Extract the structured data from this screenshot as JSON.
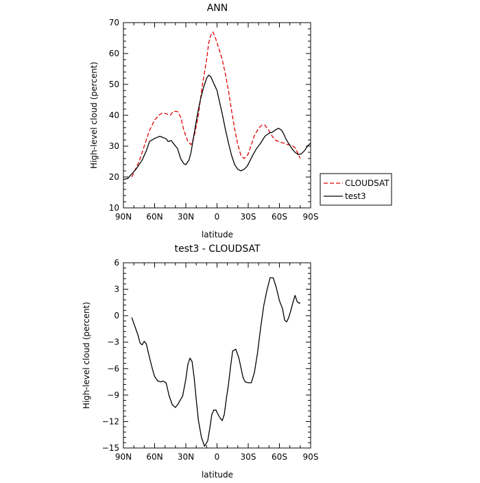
{
  "chart_data": [
    {
      "type": "line",
      "title": "ANN",
      "xlabel": "latitude",
      "ylabel": "High-level cloud (percent)",
      "xlim": [
        90,
        -90
      ],
      "ylim": [
        10,
        70
      ],
      "x_ticks": [
        90,
        60,
        30,
        0,
        -30,
        -60,
        -90
      ],
      "x_tick_labels": [
        "90N",
        "60N",
        "30N",
        "0",
        "30S",
        "60S",
        "90S"
      ],
      "y_ticks": [
        10,
        20,
        30,
        40,
        50,
        60,
        70
      ],
      "y_tick_labels": [
        "10",
        "20",
        "30",
        "40",
        "50",
        "60",
        "70"
      ],
      "legend_position": "right",
      "series": [
        {
          "name": "CLOUDSAT",
          "color": "#e00000",
          "dash": "dashed",
          "x": [
            82,
            75,
            70,
            65,
            60,
            55,
            52,
            49,
            45,
            42,
            38,
            35,
            32,
            28,
            25,
            22,
            18,
            14,
            10,
            8,
            6,
            4,
            2,
            0,
            -2,
            -5,
            -8,
            -11,
            -14,
            -17,
            -20,
            -23,
            -26,
            -28,
            -30,
            -33,
            -36,
            -40,
            -43,
            -46,
            -50,
            -53,
            -56,
            -60,
            -64,
            -68,
            -72,
            -75,
            -78,
            -80
          ],
          "y": [
            20,
            25,
            30,
            35,
            38.5,
            40.3,
            40.8,
            40.5,
            40,
            41.3,
            41.2,
            39.5,
            35.2,
            31.5,
            30.5,
            33,
            40,
            50,
            58,
            63.5,
            66,
            67,
            65.5,
            63.5,
            61.5,
            58,
            53.5,
            48,
            41.5,
            35.5,
            30.5,
            27,
            26,
            26.5,
            27.5,
            30.5,
            33.5,
            35.8,
            36.8,
            36.8,
            35,
            33.2,
            32,
            31.3,
            31,
            30.5,
            30.2,
            29.5,
            27.5,
            26
          ]
        },
        {
          "name": "test3",
          "color": "#000000",
          "dash": "solid",
          "x": [
            90,
            86,
            82,
            78,
            75,
            72,
            68,
            65,
            60,
            55,
            52,
            49,
            47,
            44,
            41,
            38,
            35,
            32,
            30,
            27,
            25,
            22,
            19,
            16,
            13,
            10,
            8,
            6,
            4,
            2,
            0,
            -2,
            -5,
            -8,
            -11,
            -14,
            -17,
            -20,
            -23,
            -26,
            -29,
            -32,
            -35,
            -38,
            -42,
            -46,
            -50,
            -53,
            -56,
            -59,
            -62,
            -64,
            -66,
            -69,
            -72,
            -75,
            -78,
            -81,
            -84,
            -87,
            -90
          ],
          "y": [
            19.2,
            19.5,
            21,
            22.5,
            24,
            25.5,
            28.5,
            31.5,
            32.5,
            33.2,
            32.8,
            32.4,
            31.5,
            31.8,
            30.5,
            29.2,
            26,
            24.3,
            24,
            25.5,
            28,
            34,
            40,
            45,
            49,
            52,
            53,
            52.5,
            51,
            49.5,
            48,
            45,
            40.5,
            35.5,
            31,
            27,
            24,
            22.5,
            22,
            22.5,
            23.5,
            25.5,
            27.5,
            29.2,
            31,
            33.2,
            34.2,
            34.5,
            35.2,
            35.8,
            35.2,
            34,
            32.5,
            30.8,
            29.2,
            28,
            27.3,
            27.5,
            28.5,
            30,
            31
          ]
        }
      ]
    },
    {
      "type": "line",
      "title": "test3 - CLOUDSAT",
      "xlabel": "latitude",
      "ylabel": "High-level cloud (percent)",
      "xlim": [
        90,
        -90
      ],
      "ylim": [
        -15,
        6
      ],
      "x_ticks": [
        90,
        60,
        30,
        0,
        -30,
        -60,
        -90
      ],
      "x_tick_labels": [
        "90N",
        "60N",
        "30N",
        "0",
        "30S",
        "60S",
        "90S"
      ],
      "y_ticks": [
        -15,
        -12,
        -9,
        -6,
        -3,
        0,
        3,
        6
      ],
      "y_tick_labels": [
        "−15",
        "−12",
        "−9",
        "−6",
        "−3",
        "0",
        "3",
        "6"
      ],
      "series": [
        {
          "color": "#000000",
          "dash": "solid",
          "x": [
            82,
            79,
            76,
            74,
            72,
            70,
            68,
            65,
            62,
            60,
            57,
            54,
            52,
            49,
            46,
            43,
            40,
            38,
            35,
            33,
            30,
            28,
            26,
            24,
            22,
            20,
            18,
            15,
            12,
            9,
            7,
            5,
            3,
            1,
            -1,
            -3,
            -5,
            -7,
            -9,
            -11,
            -13,
            -15,
            -18,
            -21,
            -23,
            -25,
            -27,
            -30,
            -33,
            -36,
            -39,
            -42,
            -45,
            -48,
            -51,
            -54,
            -57,
            -60,
            -63,
            -65,
            -67,
            -69,
            -71,
            -73,
            -75,
            -77,
            -79,
            -80
          ],
          "y": [
            -0.2,
            -1.2,
            -2.2,
            -3.1,
            -3.3,
            -2.9,
            -3.2,
            -4.7,
            -6.1,
            -6.9,
            -7.4,
            -7.5,
            -7.4,
            -7.6,
            -9.1,
            -10.1,
            -10.4,
            -10.1,
            -9.5,
            -9.1,
            -7.2,
            -5.5,
            -4.8,
            -5.2,
            -7,
            -9.5,
            -11.8,
            -13.8,
            -14.8,
            -14.2,
            -12.8,
            -11.2,
            -10.7,
            -10.7,
            -11.2,
            -11.6,
            -11.9,
            -11.2,
            -9.4,
            -7.8,
            -5.8,
            -4,
            -3.8,
            -4.8,
            -5.9,
            -7,
            -7.5,
            -7.6,
            -7.6,
            -6.4,
            -4.2,
            -1.3,
            1.2,
            2.9,
            4.3,
            4.3,
            3.2,
            1.7,
            0.8,
            -0.5,
            -0.7,
            -0.2,
            0.6,
            1.5,
            2.3,
            1.6,
            1.4,
            1.5
          ]
        }
      ]
    }
  ]
}
